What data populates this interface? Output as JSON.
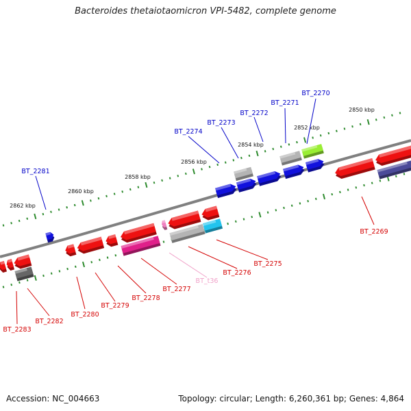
{
  "title": "Bacteroides thetaiotaomicron VPI-5482, complete genome",
  "footer": {
    "accession": "Accession: NC_004663",
    "summary": "Topology: circular; Length: 6,260,361 bp; Genes: 4,864"
  },
  "colors": {
    "backbone": "#808080",
    "tick": "#2e8b2e",
    "forward_label": "#0000c8",
    "reverse_label": "#d40000",
    "trna_label": "#f0a0c8",
    "red": "#ee1111",
    "blue": "#1111dd",
    "gray": "#b4b4b4",
    "green": "#99ee33",
    "cyan": "#22c4ee",
    "magenta": "#e0208a",
    "darkgray": "#666666",
    "slate": "#4b4a99",
    "pink": "#f080c0"
  },
  "chart_data": {
    "type": "genome-map",
    "scale_labels": [
      "2850 kbp",
      "2852 kbp",
      "2854 kbp",
      "2856 kbp",
      "2858 kbp",
      "2860 kbp",
      "2862 kbp"
    ],
    "genes": [
      {
        "label": "BT_2270",
        "strand": "+",
        "color": "green",
        "shape": "block"
      },
      {
        "label": "BT_2271",
        "strand": "+",
        "color": "gray",
        "shape": "block"
      },
      {
        "label": "BT_2272",
        "strand": "+",
        "color": "gray",
        "shape": "block"
      },
      {
        "label": "BT_2273",
        "strand": "+",
        "color": "blue",
        "shape": "arrow"
      },
      {
        "label": "BT_2274",
        "strand": "+",
        "color": "blue",
        "shape": "arrow"
      },
      {
        "label": "BT_2281",
        "strand": "+",
        "color": "blue",
        "shape": "arrow"
      },
      {
        "label": "BT_2269",
        "strand": "-",
        "color": "red",
        "shape": "arrow"
      },
      {
        "label": "BT_2275",
        "strand": "-",
        "color": "cyan",
        "shape": "block"
      },
      {
        "label": "BT_2276",
        "strand": "-",
        "color": "gray",
        "shape": "block"
      },
      {
        "label": "BT_t36",
        "strand": "-",
        "color": "pink",
        "shape": "arrow"
      },
      {
        "label": "BT_2277",
        "strand": "-",
        "color": "magenta",
        "shape": "block"
      },
      {
        "label": "BT_2278",
        "strand": "-",
        "color": "red",
        "shape": "arrow"
      },
      {
        "label": "BT_2279",
        "strand": "-",
        "color": "red",
        "shape": "arrow"
      },
      {
        "label": "BT_2280",
        "strand": "-",
        "color": "red",
        "shape": "arrow"
      },
      {
        "label": "BT_2282",
        "strand": "-",
        "color": "darkgray",
        "shape": "block"
      },
      {
        "label": "BT_2283",
        "strand": "-",
        "color": "red",
        "shape": "arrow"
      }
    ]
  }
}
